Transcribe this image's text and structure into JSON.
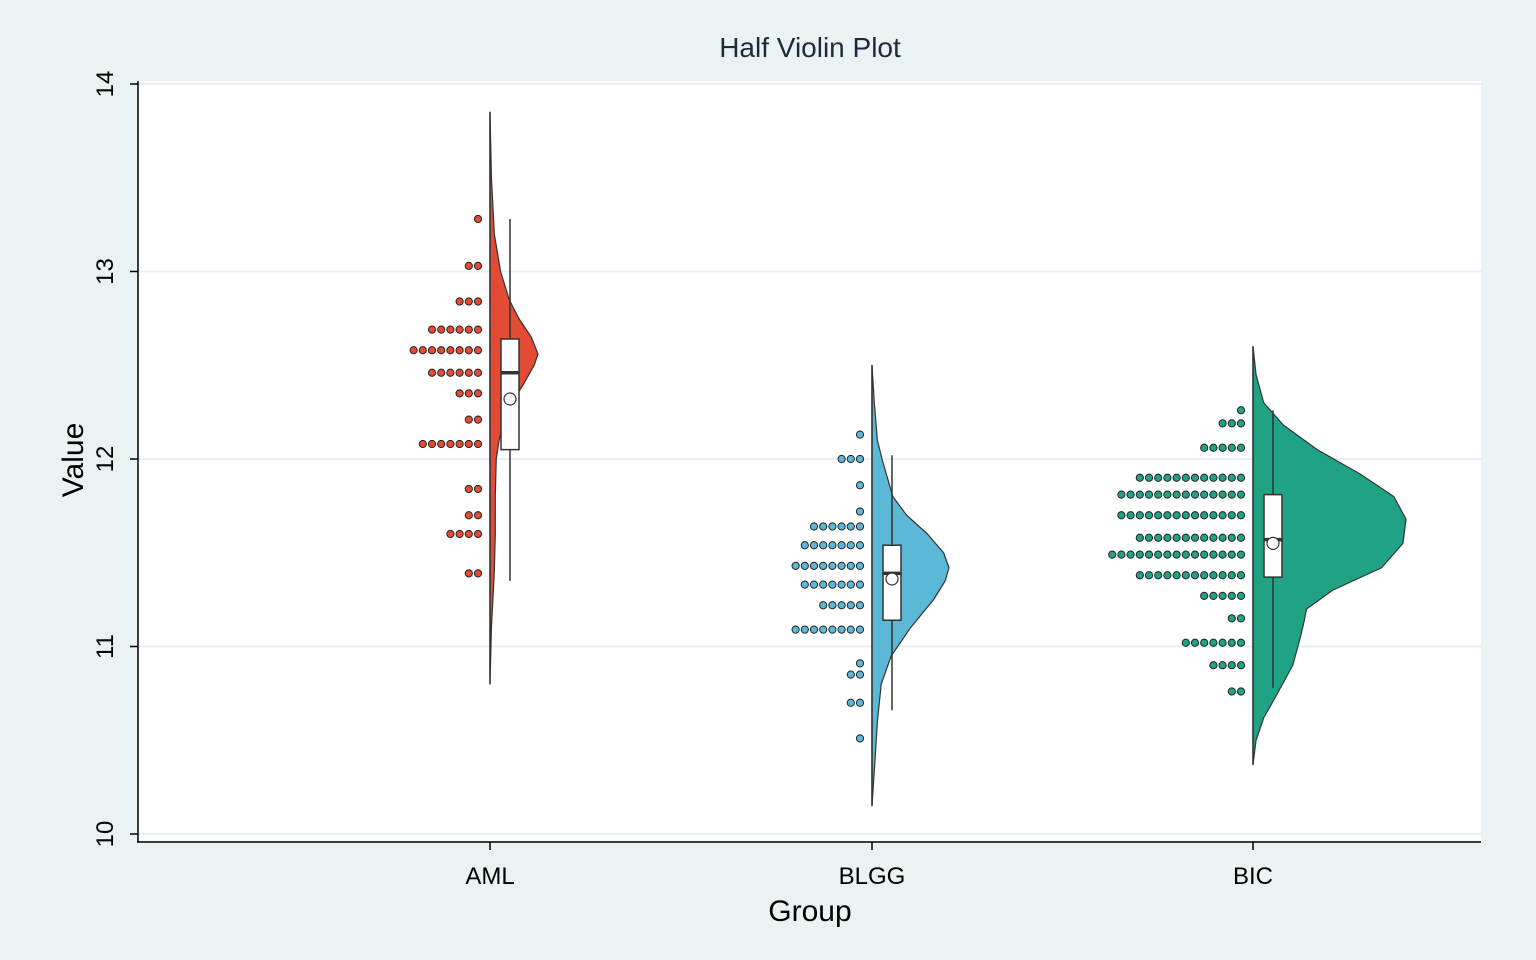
{
  "chart_data": {
    "type": "half-violin",
    "title": "Half Violin Plot",
    "xlabel": "Group",
    "ylabel": "Value",
    "ylim": [
      10,
      14
    ],
    "yticks": [
      10,
      11,
      12,
      13,
      14
    ],
    "grid": true,
    "categories": [
      "AML",
      "BLGG",
      "BIC"
    ],
    "groups": [
      {
        "name": "AML",
        "color": "#e34b35",
        "range": [
          10.8,
          13.85
        ],
        "median": 12.46,
        "mean": 12.32,
        "q1": 12.05,
        "q3": 12.64,
        "whisker": [
          11.35,
          13.28
        ],
        "density": [
          [
            10.8,
            0.0
          ],
          [
            11.1,
            0.03
          ],
          [
            11.4,
            0.09
          ],
          [
            11.6,
            0.11
          ],
          [
            11.8,
            0.11
          ],
          [
            12.0,
            0.13
          ],
          [
            12.1,
            0.19
          ],
          [
            12.2,
            0.29
          ],
          [
            12.3,
            0.45
          ],
          [
            12.4,
            0.7
          ],
          [
            12.5,
            0.92
          ],
          [
            12.56,
            1.0
          ],
          [
            12.65,
            0.86
          ],
          [
            12.75,
            0.6
          ],
          [
            12.85,
            0.4
          ],
          [
            13.0,
            0.22
          ],
          [
            13.2,
            0.09
          ],
          [
            13.5,
            0.03
          ],
          [
            13.85,
            0.0
          ]
        ],
        "dots": [
          {
            "y": 13.28,
            "n": 1
          },
          {
            "y": 13.03,
            "n": 2
          },
          {
            "y": 12.84,
            "n": 3
          },
          {
            "y": 12.69,
            "n": 6
          },
          {
            "y": 12.58,
            "n": 8
          },
          {
            "y": 12.46,
            "n": 6
          },
          {
            "y": 12.35,
            "n": 3
          },
          {
            "y": 12.21,
            "n": 2
          },
          {
            "y": 12.08,
            "n": 7
          },
          {
            "y": 11.84,
            "n": 2
          },
          {
            "y": 11.7,
            "n": 2
          },
          {
            "y": 11.6,
            "n": 4
          },
          {
            "y": 11.39,
            "n": 2
          }
        ]
      },
      {
        "name": "BLGG",
        "color": "#5bb8d6",
        "range": [
          10.15,
          12.5
        ],
        "median": 11.39,
        "mean": 11.36,
        "q1": 11.14,
        "q3": 11.54,
        "whisker": [
          10.66,
          12.02
        ],
        "density": [
          [
            10.15,
            0.0
          ],
          [
            10.4,
            0.04
          ],
          [
            10.6,
            0.07
          ],
          [
            10.8,
            0.12
          ],
          [
            10.95,
            0.25
          ],
          [
            11.1,
            0.5
          ],
          [
            11.25,
            0.8
          ],
          [
            11.35,
            0.95
          ],
          [
            11.42,
            1.0
          ],
          [
            11.5,
            0.93
          ],
          [
            11.6,
            0.72
          ],
          [
            11.7,
            0.45
          ],
          [
            11.8,
            0.27
          ],
          [
            11.9,
            0.2
          ],
          [
            12.0,
            0.13
          ],
          [
            12.1,
            0.07
          ],
          [
            12.3,
            0.03
          ],
          [
            12.5,
            0.0
          ]
        ],
        "dots": [
          {
            "y": 12.13,
            "n": 1
          },
          {
            "y": 12.0,
            "n": 3
          },
          {
            "y": 11.86,
            "n": 1
          },
          {
            "y": 11.72,
            "n": 1
          },
          {
            "y": 11.64,
            "n": 6
          },
          {
            "y": 11.54,
            "n": 7
          },
          {
            "y": 11.43,
            "n": 8
          },
          {
            "y": 11.33,
            "n": 7
          },
          {
            "y": 11.22,
            "n": 5
          },
          {
            "y": 11.09,
            "n": 8
          },
          {
            "y": 10.91,
            "n": 1
          },
          {
            "y": 10.85,
            "n": 2
          },
          {
            "y": 10.7,
            "n": 2
          },
          {
            "y": 10.51,
            "n": 1
          }
        ]
      },
      {
        "name": "BIC",
        "color": "#20a285",
        "range": [
          10.37,
          12.6
        ],
        "median": 11.57,
        "mean": 11.55,
        "q1": 11.37,
        "q3": 11.81,
        "whisker": [
          10.78,
          12.26
        ],
        "density": [
          [
            10.37,
            0.0
          ],
          [
            10.5,
            0.02
          ],
          [
            10.62,
            0.07
          ],
          [
            10.75,
            0.16
          ],
          [
            10.9,
            0.26
          ],
          [
            11.05,
            0.31
          ],
          [
            11.12,
            0.33
          ],
          [
            11.2,
            0.35
          ],
          [
            11.3,
            0.52
          ],
          [
            11.42,
            0.84
          ],
          [
            11.55,
            0.98
          ],
          [
            11.68,
            1.0
          ],
          [
            11.8,
            0.92
          ],
          [
            11.92,
            0.7
          ],
          [
            12.05,
            0.42
          ],
          [
            12.18,
            0.2
          ],
          [
            12.3,
            0.07
          ],
          [
            12.45,
            0.02
          ],
          [
            12.6,
            0.0
          ]
        ],
        "dots": [
          {
            "y": 12.26,
            "n": 1
          },
          {
            "y": 12.19,
            "n": 3
          },
          {
            "y": 12.06,
            "n": 5
          },
          {
            "y": 11.9,
            "n": 12
          },
          {
            "y": 11.81,
            "n": 14
          },
          {
            "y": 11.7,
            "n": 14
          },
          {
            "y": 11.58,
            "n": 12
          },
          {
            "y": 11.49,
            "n": 15
          },
          {
            "y": 11.38,
            "n": 12
          },
          {
            "y": 11.27,
            "n": 5
          },
          {
            "y": 11.15,
            "n": 2
          },
          {
            "y": 11.02,
            "n": 7
          },
          {
            "y": 10.9,
            "n": 4
          },
          {
            "y": 10.76,
            "n": 2
          }
        ]
      }
    ]
  }
}
